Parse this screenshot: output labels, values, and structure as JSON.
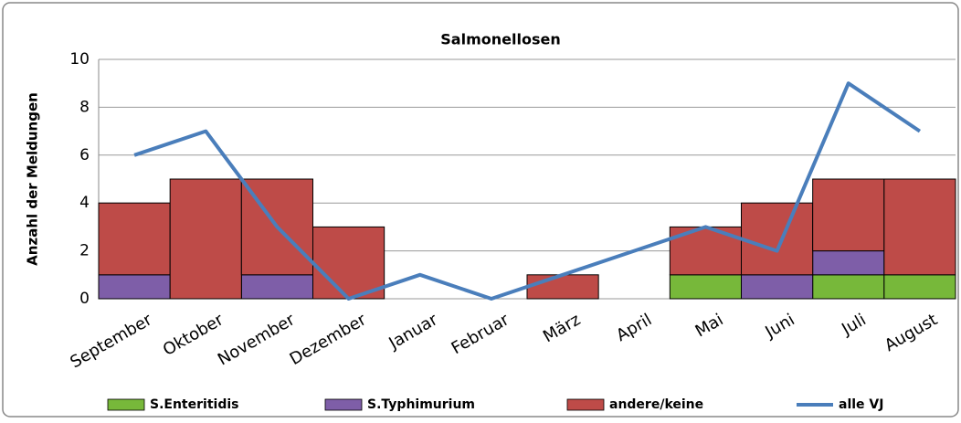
{
  "chart_data": {
    "type": "bar",
    "stacked": true,
    "title": "Salmonellosen",
    "y_label": "Anzahl der Meldungen",
    "categories": [
      "September",
      "Oktober",
      "November",
      "Dezember",
      "Januar",
      "Februar",
      "März",
      "April",
      "Mai",
      "Juni",
      "Juli",
      "August"
    ],
    "series": [
      {
        "name": "S.Enteritidis",
        "color": "#77b83a",
        "values": [
          0,
          0,
          0,
          0,
          0,
          0,
          0,
          0,
          1,
          0,
          1,
          1
        ]
      },
      {
        "name": "S.Typhimurium",
        "color": "#7e5ea8",
        "values": [
          1,
          0,
          1,
          0,
          0,
          0,
          0,
          0,
          0,
          1,
          1,
          0
        ]
      },
      {
        "name": "andere/keine",
        "color": "#be4b48",
        "values": [
          3,
          5,
          4,
          3,
          0,
          0,
          1,
          0,
          2,
          3,
          3,
          4
        ]
      },
      {
        "name": "alle VJ",
        "color": "#4a7ebb",
        "type": "line",
        "values": [
          6,
          7,
          3,
          0,
          1,
          0,
          1,
          2,
          3,
          2,
          9,
          7
        ]
      }
    ],
    "ylim": [
      0,
      10
    ],
    "yticks": [
      0,
      2,
      4,
      6,
      8,
      10
    ],
    "grid": true,
    "legend": "bottom"
  }
}
